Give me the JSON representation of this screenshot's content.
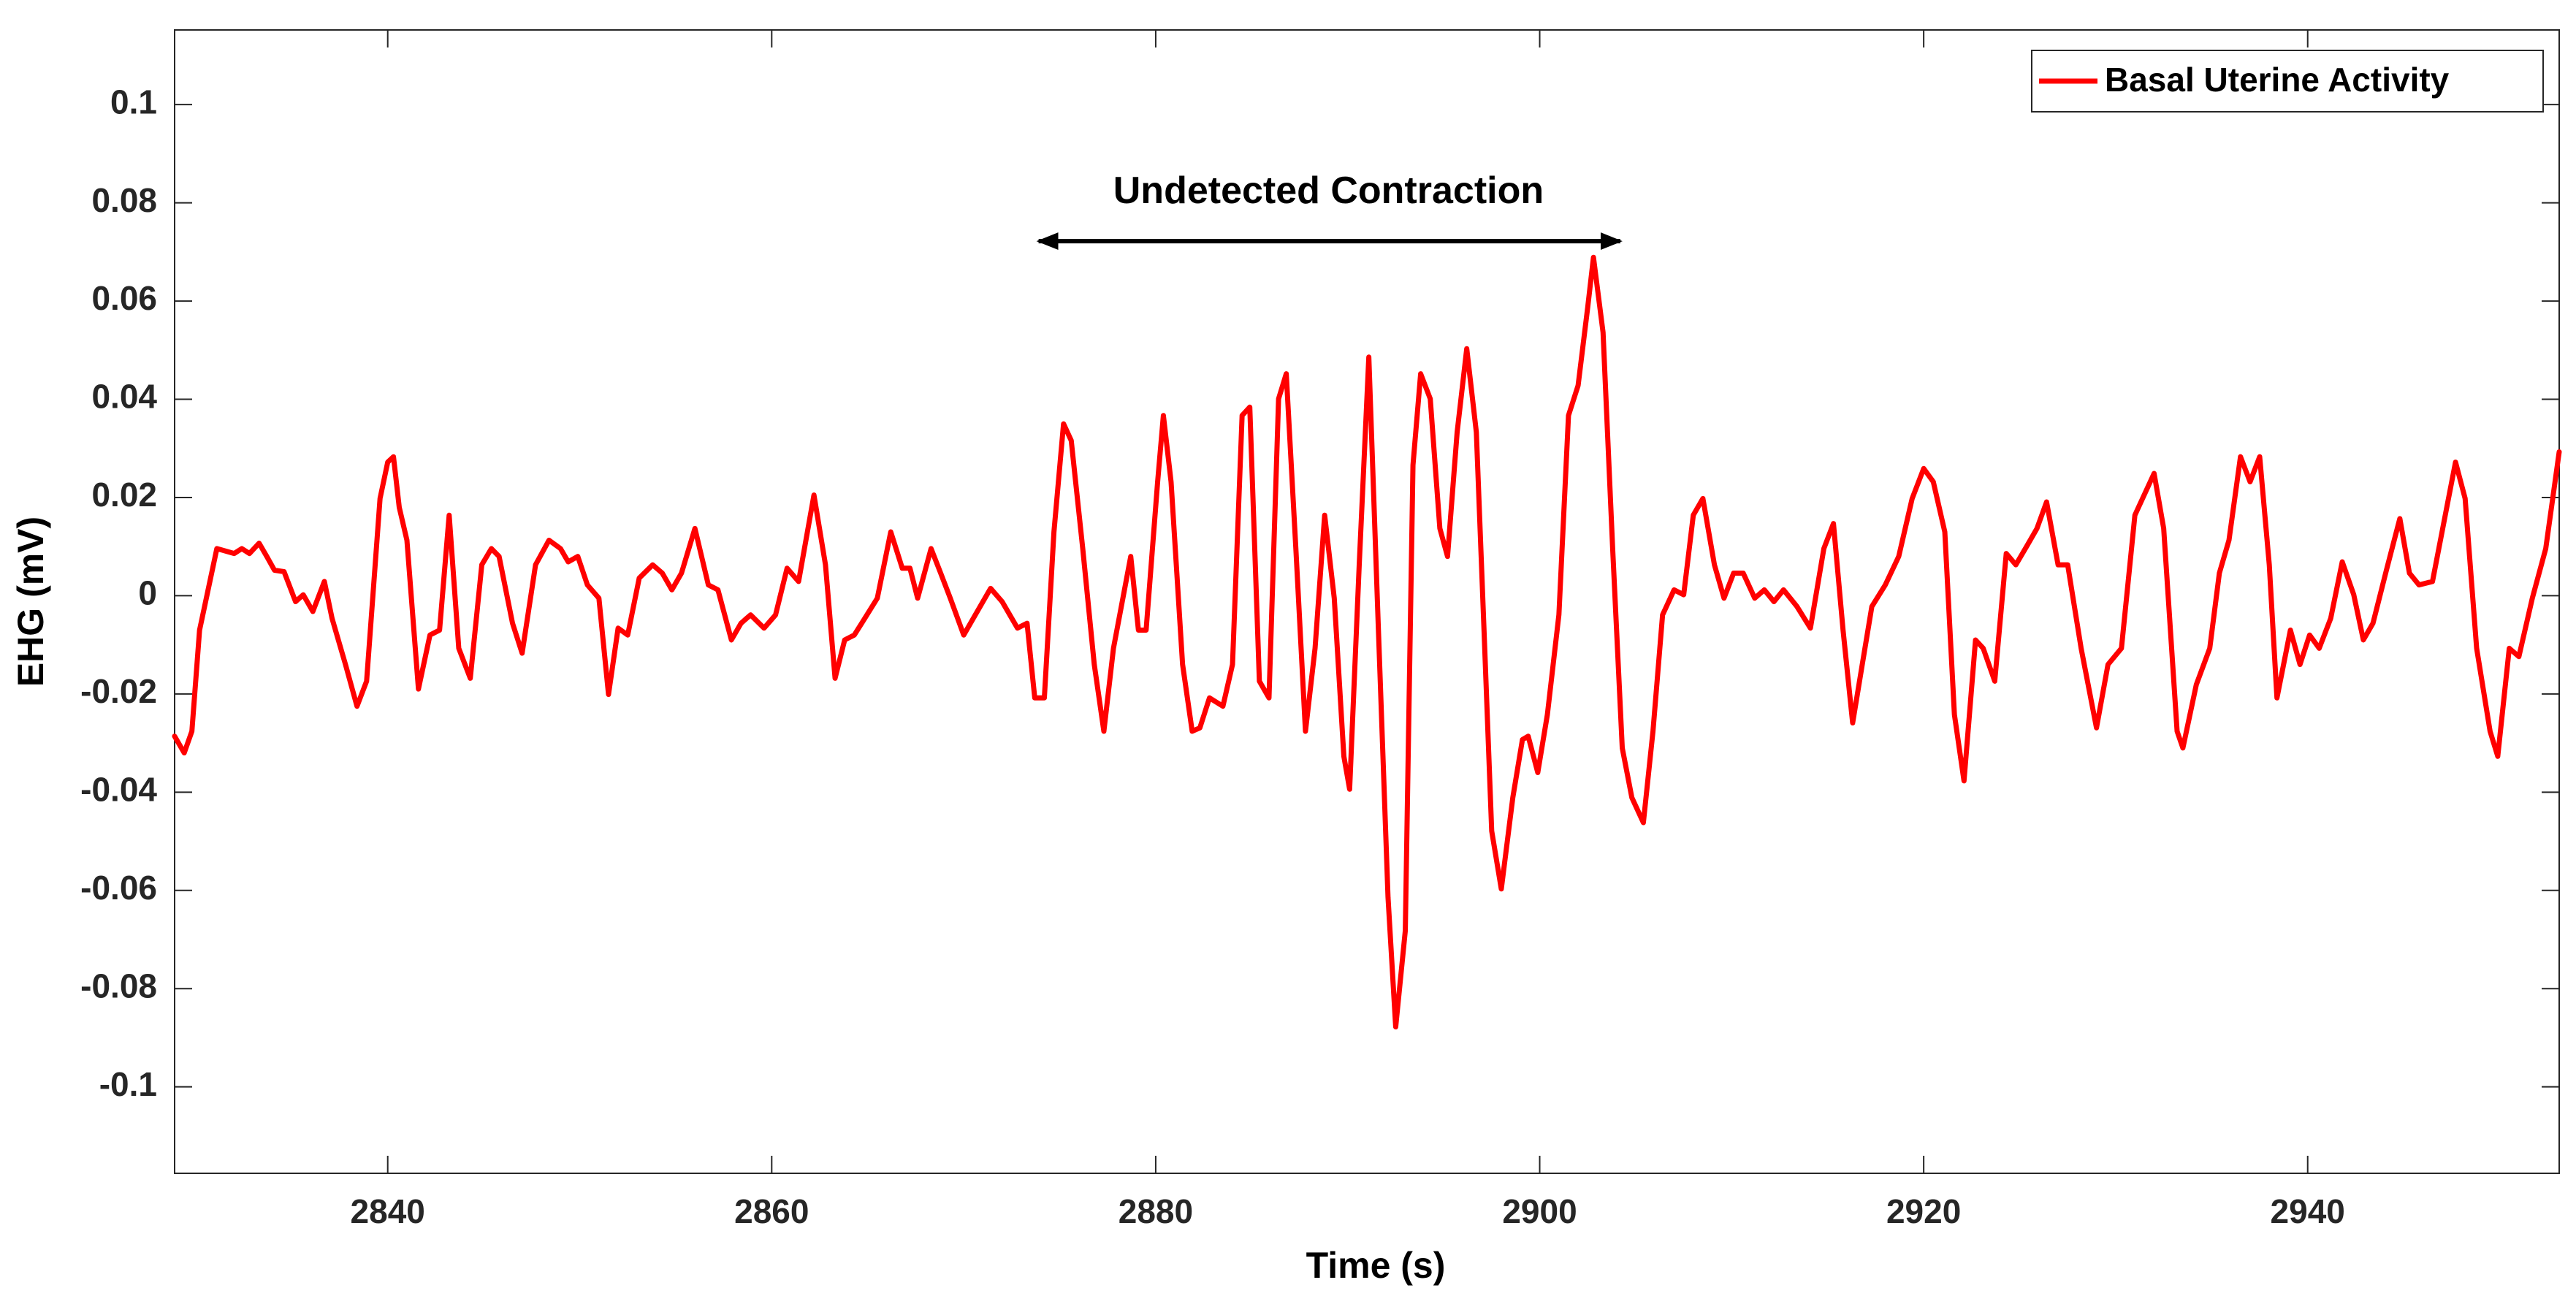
{
  "chart_data": {
    "type": "line",
    "xlabel": "Time (s)",
    "ylabel": "EHG (mV)",
    "legend": "upper right",
    "xlim": [
      2828.9,
      2953.1
    ],
    "ylim": [
      -0.1176,
      0.1152
    ],
    "xticks": [
      2840,
      2860,
      2880,
      2900,
      2920,
      2940
    ],
    "yticks": [
      -0.1,
      -0.08,
      -0.06,
      -0.04,
      -0.02,
      0,
      0.02,
      0.04,
      0.06,
      0.08,
      0.1
    ],
    "annotations": [
      {
        "text": "Undetected Contraction",
        "x": 2889,
        "y": 0.082,
        "arrow_x": [
          2873.9,
          2904.2
        ],
        "arrow_y": 0.0722
      }
    ],
    "x": [
      2828.9,
      2829.4,
      2829.8,
      2830.2,
      2831.1,
      2832.0,
      2832.4,
      2832.8,
      2833.3,
      2833.7,
      2834.1,
      2834.6,
      2835.2,
      2835.6,
      2836.1,
      2836.7,
      2837.1,
      2837.8,
      2838.4,
      2838.9,
      2839.6,
      2840.0,
      2840.3,
      2840.6,
      2841.0,
      2841.6,
      2842.2,
      2842.7,
      2843.2,
      2843.7,
      2844.3,
      2844.9,
      2845.4,
      2845.8,
      2846.5,
      2847.0,
      2847.7,
      2848.4,
      2849.0,
      2849.4,
      2849.9,
      2850.4,
      2851.0,
      2851.5,
      2852.0,
      2852.5,
      2853.1,
      2853.8,
      2854.3,
      2854.8,
      2855.3,
      2856.0,
      2856.7,
      2857.2,
      2857.9,
      2858.4,
      2858.9,
      2859.6,
      2860.2,
      2860.8,
      2861.4,
      2862.2,
      2862.8,
      2863.3,
      2863.8,
      2864.3,
      2864.8,
      2865.5,
      2866.2,
      2866.8,
      2867.2,
      2867.6,
      2868.3,
      2868.8,
      2869.3,
      2870.0,
      2870.5,
      2871.4,
      2872.0,
      2872.8,
      2873.3,
      2873.7,
      2874.2,
      2874.7,
      2875.2,
      2875.6,
      2876.2,
      2876.8,
      2877.3,
      2877.8,
      2878.7,
      2879.1,
      2879.5,
      2880.1,
      2880.4,
      2880.8,
      2881.4,
      2881.9,
      2882.3,
      2882.8,
      2883.5,
      2884.0,
      2884.5,
      2884.9,
      2885.4,
      2885.9,
      2886.4,
      2886.8,
      2887.3,
      2887.8,
      2888.3,
      2888.8,
      2889.3,
      2889.8,
      2890.1,
      2890.6,
      2891.1,
      2891.6,
      2892.1,
      2892.5,
      2893.0,
      2893.4,
      2893.8,
      2894.3,
      2894.8,
      2895.2,
      2895.7,
      2896.2,
      2896.7,
      2897.1,
      2897.5,
      2898.0,
      2898.6,
      2899.1,
      2899.4,
      2899.9,
      2900.4,
      2901.0,
      2901.5,
      2902.0,
      2902.5,
      2902.8,
      2903.3,
      2903.8,
      2904.3,
      2904.8,
      2905.4,
      2905.9,
      2906.4,
      2907.0,
      2907.5,
      2908.0,
      2908.5,
      2909.1,
      2909.6,
      2910.1,
      2910.6,
      2911.2,
      2911.7,
      2912.2,
      2912.7,
      2913.4,
      2914.1,
      2914.8,
      2915.3,
      2915.8,
      2916.3,
      2916.8,
      2917.3,
      2918.0,
      2918.7,
      2919.4,
      2920.0,
      2920.5,
      2921.1,
      2921.6,
      2922.1,
      2922.7,
      2923.1,
      2923.7,
      2924.3,
      2924.8,
      2925.4,
      2925.9,
      2926.4,
      2927.0,
      2927.5,
      2928.2,
      2929.0,
      2929.6,
      2930.3,
      2931.0,
      2932.0,
      2932.5,
      2933.2,
      2933.5,
      2934.2,
      2934.9,
      2935.4,
      2935.9,
      2936.5,
      2937.0,
      2937.5,
      2938.0,
      2938.4,
      2939.1,
      2939.6,
      2940.1,
      2940.6,
      2941.2,
      2941.8,
      2942.4,
      2942.9,
      2943.4,
      2944.1,
      2944.8,
      2945.3,
      2945.8,
      2946.5,
      2947.2,
      2947.7,
      2948.2,
      2948.8,
      2949.5,
      2949.9,
      2950.5,
      2951.0,
      2951.7,
      2952.4,
      2953.1
    ],
    "series": [
      {
        "name": "Basal Uterine Activity",
        "color": "#ff0000",
        "values": [
          -0.0286,
          -0.032,
          -0.0276,
          -0.007,
          0.0096,
          0.0086,
          0.0096,
          0.0086,
          0.0107,
          0.008,
          0.0052,
          0.0049,
          -0.0012,
          0.0002,
          -0.0032,
          0.0029,
          -0.0046,
          -0.014,
          -0.0225,
          -0.0174,
          0.0198,
          0.0272,
          0.0283,
          0.018,
          0.0113,
          -0.019,
          -0.008,
          -0.007,
          0.0164,
          -0.0107,
          -0.0168,
          0.0063,
          0.0096,
          0.008,
          -0.0056,
          -0.0117,
          0.0063,
          0.0113,
          0.0096,
          0.0069,
          0.008,
          0.0022,
          -0.0005,
          -0.0201,
          -0.0066,
          -0.008,
          0.0036,
          0.0063,
          0.0046,
          0.0012,
          0.0046,
          0.0137,
          0.0022,
          0.0012,
          -0.009,
          -0.0056,
          -0.0039,
          -0.0066,
          -0.0039,
          0.0056,
          0.0029,
          0.0205,
          0.0063,
          -0.0168,
          -0.009,
          -0.008,
          -0.0049,
          -0.0005,
          0.013,
          0.0056,
          0.0056,
          -0.0005,
          0.0096,
          0.0046,
          -0.0005,
          -0.008,
          -0.0046,
          0.0015,
          -0.0012,
          -0.0066,
          -0.0056,
          -0.0208,
          -0.0208,
          0.013,
          0.035,
          0.0316,
          0.0096,
          -0.014,
          -0.0276,
          -0.0107,
          0.008,
          -0.007,
          -0.007,
          0.0232,
          0.0367,
          0.0232,
          -0.014,
          -0.0276,
          -0.0269,
          -0.0208,
          -0.0225,
          -0.014,
          0.0367,
          0.0384,
          -0.0174,
          -0.0208,
          0.0401,
          0.0452,
          0.0096,
          -0.0276,
          -0.0107,
          0.0164,
          -0.0005,
          -0.0327,
          -0.0394,
          0.0063,
          0.0486,
          -0.007,
          -0.0614,
          -0.0878,
          -0.0682,
          0.0266,
          0.0452,
          0.0401,
          0.0137,
          0.008,
          0.0333,
          0.0503,
          0.0333,
          -0.007,
          -0.0479,
          -0.0597,
          -0.0411,
          -0.0293,
          -0.0286,
          -0.036,
          -0.0242,
          -0.0039,
          0.0367,
          0.0428,
          0.0587,
          0.0689,
          0.0536,
          0.0096,
          -0.031,
          -0.0411,
          -0.0462,
          -0.0276,
          -0.0039,
          0.0012,
          0.0002,
          0.0164,
          0.0198,
          0.0063,
          -0.0005,
          0.0046,
          0.0046,
          -0.0005,
          0.0012,
          -0.0012,
          0.0012,
          -0.0022,
          -0.0066,
          0.0096,
          0.0147,
          -0.007,
          -0.0259,
          -0.014,
          -0.0022,
          0.0022,
          0.008,
          0.0198,
          0.0259,
          0.0232,
          0.013,
          -0.0242,
          -0.0377,
          -0.009,
          -0.0107,
          -0.0174,
          0.0086,
          0.0063,
          0.0103,
          0.0137,
          0.0191,
          0.0063,
          0.0063,
          -0.0107,
          -0.0269,
          -0.014,
          -0.0107,
          0.0164,
          0.0249,
          0.0137,
          -0.0276,
          -0.031,
          -0.0181,
          -0.0107,
          0.0046,
          0.0113,
          0.0283,
          0.0232,
          0.0283,
          0.0063,
          -0.0208,
          -0.007,
          -0.014,
          -0.008,
          -0.0107,
          -0.0046,
          0.0069,
          0.0002,
          -0.009,
          -0.0056,
          0.0052,
          0.0157,
          0.0046,
          0.0022,
          0.0029,
          0.0171,
          0.0272,
          0.0198,
          -0.0107,
          -0.0276,
          -0.0327,
          -0.0107,
          -0.0124,
          -0.0005,
          0.0096,
          0.0293
        ]
      }
    ]
  }
}
